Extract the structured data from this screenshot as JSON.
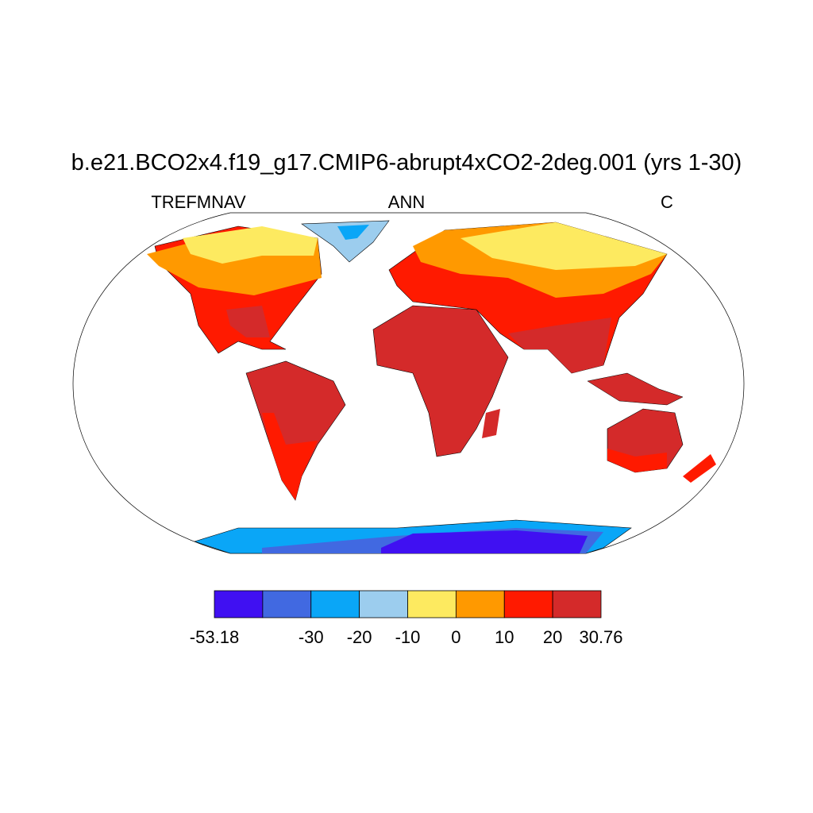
{
  "title": "b.e21.BCO2x4.f19_g17.CMIP6-abrupt4xCO2-2deg.001 (yrs 1-30)",
  "left_label": "TREFMNAV",
  "center_label": "ANN",
  "right_label": "C",
  "colorbar": {
    "colors": [
      "#4010f2",
      "#4169e1",
      "#0aa6f7",
      "#9ccdee",
      "#fdea60",
      "#ff9900",
      "#ff1a00",
      "#d42a2a"
    ],
    "labels": [
      -53.18,
      null,
      -30,
      -20,
      -10,
      0,
      10,
      20,
      30.76
    ]
  }
}
